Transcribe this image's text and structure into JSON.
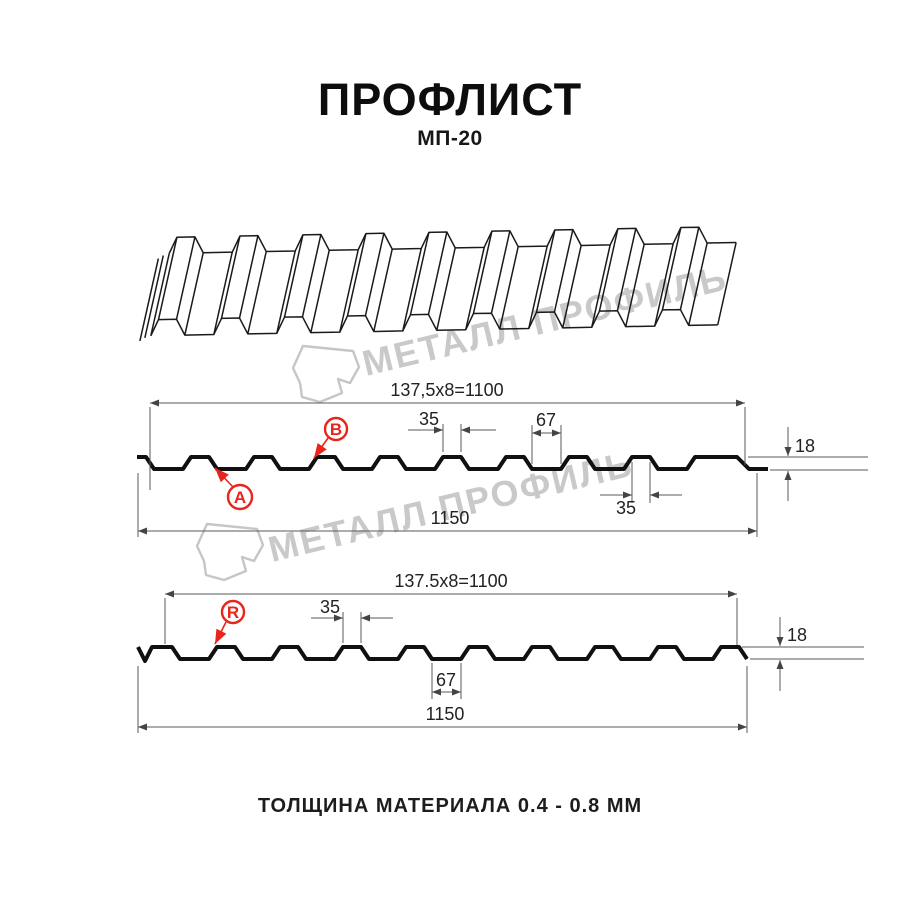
{
  "title": {
    "heading": "ПРОФЛИСТ",
    "model": "МП-20"
  },
  "footer": {
    "text": "ТОЛЩИНА МАТЕРИАЛА 0.4 - 0.8 ММ"
  },
  "watermark": {
    "brand": "МЕТАЛЛ ПРОФИЛЬ"
  },
  "icons": {
    "logo": "metal-profil-logo-outline",
    "badges": "red-circle-letter-markers"
  },
  "colors": {
    "accent_red": "#e8251c",
    "drawing_line": "#101010",
    "dim_line": "#5a5a5a",
    "watermark": "#c9c9c9"
  },
  "section_a": {
    "width_formula": "137,5x8=1100",
    "rib_top_width": "35",
    "valley_width": "67",
    "height": "18",
    "rib_top_width_bottom": "35",
    "total_width": "1150",
    "label_a": "A",
    "label_b": "B"
  },
  "section_r": {
    "width_formula": "137.5x8=1100",
    "rib_top_width": "35",
    "valley_width": "67",
    "height": "18",
    "total_width": "1150",
    "label_r": "R"
  }
}
